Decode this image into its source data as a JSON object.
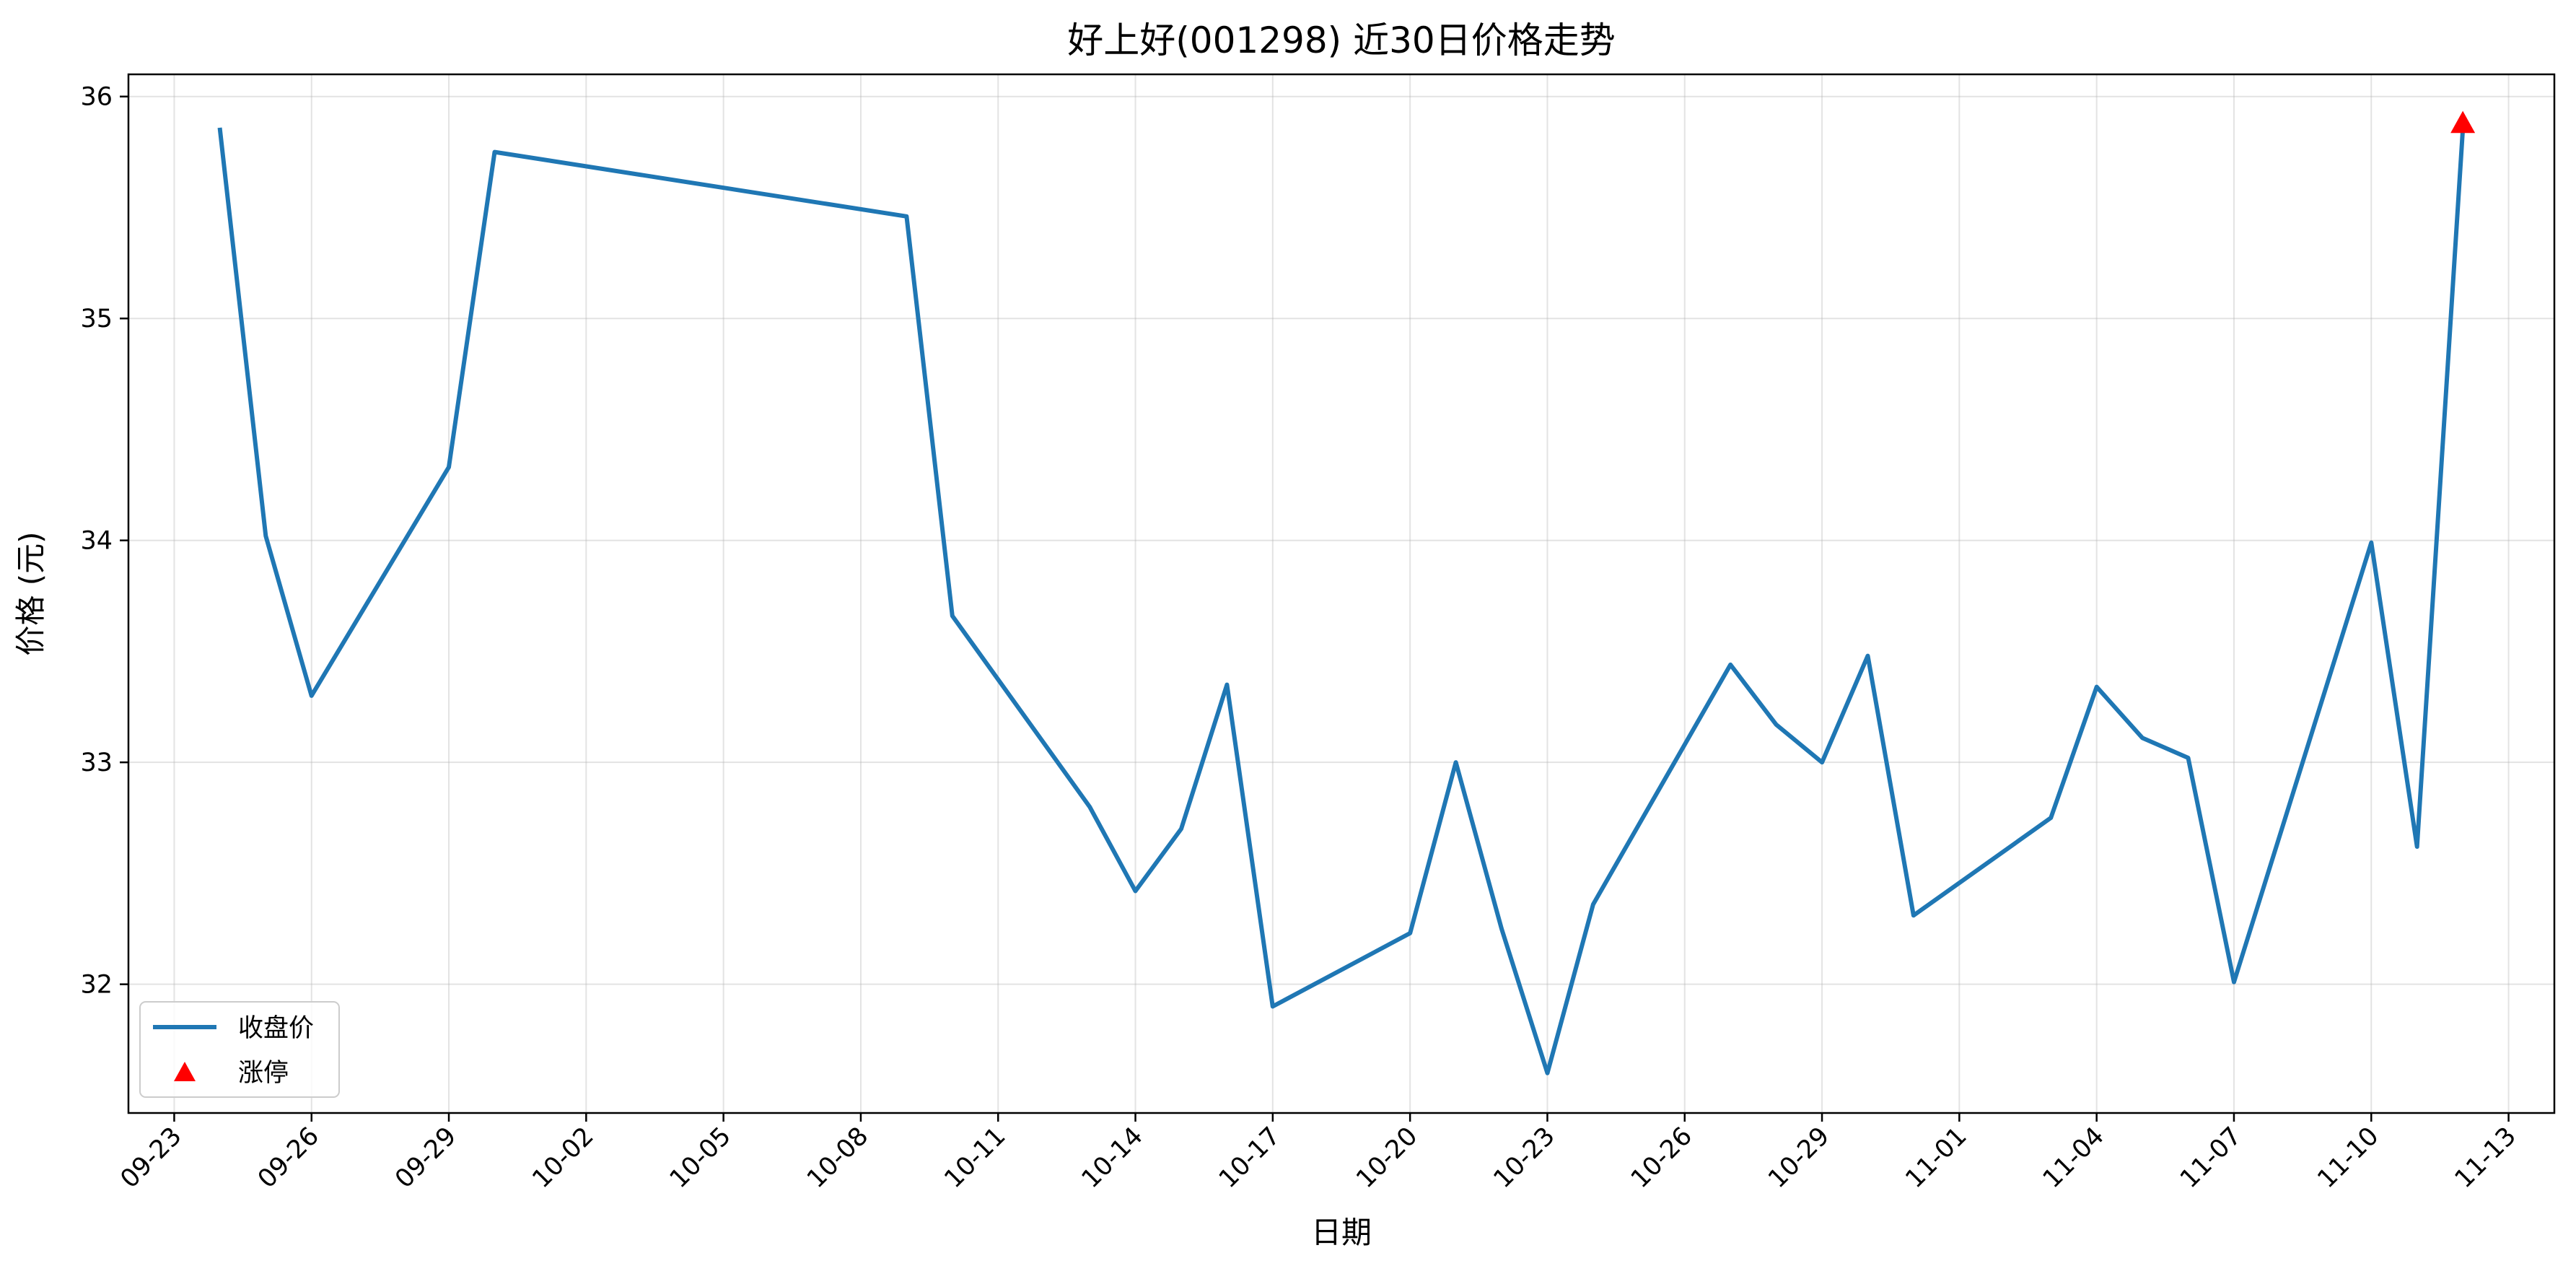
{
  "chart_data": {
    "type": "line",
    "title": "好上好(001298) 近30日价格走势",
    "xlabel": "日期",
    "ylabel": "价格 (元)",
    "grid": true,
    "legend_position": "lower-left",
    "x_domain": [
      "2024-09-22",
      "2024-11-14"
    ],
    "ylim": [
      31.42,
      36.1
    ],
    "x_ticks": [
      {
        "date": "2024-09-23",
        "label": "09-23"
      },
      {
        "date": "2024-09-26",
        "label": "09-26"
      },
      {
        "date": "2024-09-29",
        "label": "09-29"
      },
      {
        "date": "2024-10-02",
        "label": "10-02"
      },
      {
        "date": "2024-10-05",
        "label": "10-05"
      },
      {
        "date": "2024-10-08",
        "label": "10-08"
      },
      {
        "date": "2024-10-11",
        "label": "10-11"
      },
      {
        "date": "2024-10-14",
        "label": "10-14"
      },
      {
        "date": "2024-10-17",
        "label": "10-17"
      },
      {
        "date": "2024-10-20",
        "label": "10-20"
      },
      {
        "date": "2024-10-23",
        "label": "10-23"
      },
      {
        "date": "2024-10-26",
        "label": "10-26"
      },
      {
        "date": "2024-10-29",
        "label": "10-29"
      },
      {
        "date": "2024-11-01",
        "label": "11-01"
      },
      {
        "date": "2024-11-04",
        "label": "11-04"
      },
      {
        "date": "2024-11-07",
        "label": "11-07"
      },
      {
        "date": "2024-11-10",
        "label": "11-10"
      },
      {
        "date": "2024-11-13",
        "label": "11-13"
      }
    ],
    "y_ticks": [
      32,
      33,
      34,
      35,
      36
    ],
    "series": [
      {
        "name": "收盘价",
        "color": "#1f77b4",
        "style": "line",
        "x": [
          "2024-09-24",
          "2024-09-25",
          "2024-09-26",
          "2024-09-29",
          "2024-09-30",
          "2024-10-09",
          "2024-10-10",
          "2024-10-13",
          "2024-10-14",
          "2024-10-15",
          "2024-10-16",
          "2024-10-17",
          "2024-10-20",
          "2024-10-21",
          "2024-10-22",
          "2024-10-23",
          "2024-10-24",
          "2024-10-27",
          "2024-10-28",
          "2024-10-29",
          "2024-10-30",
          "2024-10-31",
          "2024-11-03",
          "2024-11-04",
          "2024-11-05",
          "2024-11-06",
          "2024-11-07",
          "2024-11-10",
          "2024-11-11",
          "2024-11-12"
        ],
        "y": [
          35.85,
          34.02,
          33.3,
          34.33,
          35.75,
          35.46,
          33.66,
          32.8,
          32.42,
          32.7,
          33.35,
          31.9,
          32.23,
          33.0,
          32.25,
          31.6,
          32.36,
          33.44,
          33.17,
          33.0,
          33.48,
          32.31,
          32.75,
          33.34,
          33.11,
          33.02,
          32.01,
          33.99,
          32.62,
          35.85
        ]
      },
      {
        "name": "涨停",
        "color": "#ff0000",
        "style": "marker-triangle",
        "x": [
          "2024-11-12"
        ],
        "y": [
          35.88
        ]
      }
    ]
  }
}
